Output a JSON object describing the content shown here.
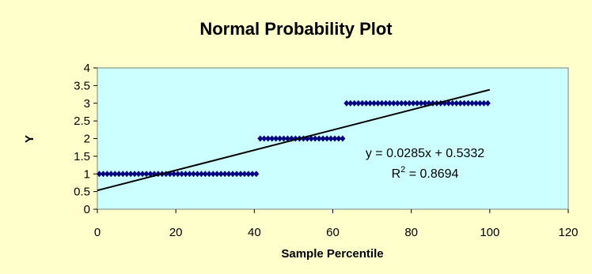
{
  "chart_data": {
    "type": "scatter",
    "title": "Normal Probability Plot",
    "xlabel": "Sample Percentile",
    "ylabel": "Y",
    "xlim": [
      0,
      120
    ],
    "ylim": [
      0,
      4
    ],
    "xticks": [
      0,
      20,
      40,
      60,
      80,
      100,
      120
    ],
    "yticks": [
      0,
      0.5,
      1,
      1.5,
      2,
      2.5,
      3,
      3.5,
      4
    ],
    "xtick_labels": [
      "0",
      "20",
      "40",
      "60",
      "80",
      "100",
      "120"
    ],
    "ytick_labels": [
      "0",
      "0.5",
      "1",
      "1.5",
      "2",
      "2.5",
      "3",
      "3.5",
      "4"
    ],
    "grid": false,
    "legend": "none",
    "plot_background": "#CCFFFF",
    "chart_background": "#FFFFCC",
    "marker_color": "#000080",
    "trendline_color": "#000000",
    "series": [
      {
        "groups": [
          {
            "y": 1,
            "x_start": 0.5,
            "x_end": 40.5,
            "count": 41
          },
          {
            "y": 2,
            "x_start": 41.5,
            "x_end": 62.5,
            "count": 22
          },
          {
            "y": 3,
            "x_start": 63.5,
            "x_end": 99.5,
            "count": 37
          }
        ]
      }
    ],
    "trendline": {
      "slope": 0.0285,
      "intercept": 0.5332,
      "x_range": [
        0,
        100
      ],
      "equation_text": "y = 0.0285x + 0.5332",
      "r2_prefix": "R",
      "r2_exp": "2",
      "r2_value": " = 0.8694"
    }
  }
}
